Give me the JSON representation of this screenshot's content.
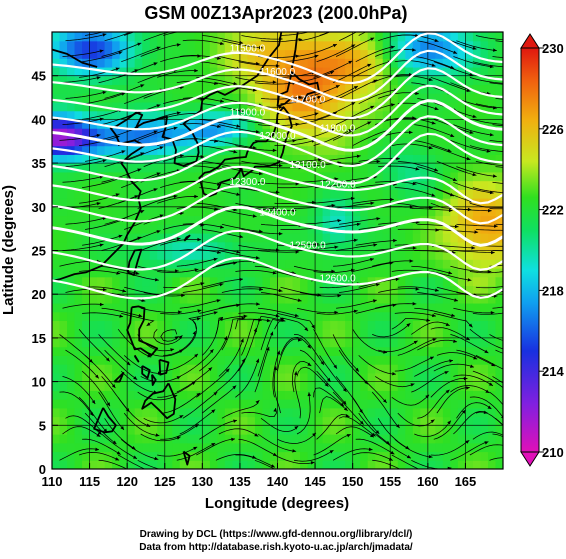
{
  "chart_data": {
    "type": "heatmap",
    "title": "GSM 00Z13Apr2023 (200.0hPa)",
    "xlabel": "Longitude (degrees)",
    "ylabel": "Latitude (degrees)",
    "xlim": [
      110,
      170
    ],
    "ylim": [
      0,
      50
    ],
    "x_ticks": [
      "110",
      "115",
      "120",
      "125",
      "130",
      "135",
      "140",
      "145",
      "150",
      "155",
      "160",
      "165"
    ],
    "y_ticks": [
      "0",
      "5",
      "10",
      "15",
      "20",
      "25",
      "30",
      "35",
      "40",
      "45"
    ],
    "colorbar": {
      "min": 210,
      "max": 230,
      "ticks": [
        "210",
        "214",
        "218",
        "222",
        "226",
        "230"
      ]
    },
    "contours": [
      {
        "label": "11500.0",
        "lat": 46.5
      },
      {
        "label": "11600.0",
        "lat": 44.5
      },
      {
        "label": "11700.0",
        "lat": 42.5
      },
      {
        "label": "11800.0",
        "lat": 40.5
      },
      {
        "label": "11900.0",
        "lat": 38.8
      },
      {
        "label": "12000.0",
        "lat": 37.0
      },
      {
        "label": "12100.0",
        "lat": 35.0
      },
      {
        "label": "12200.0",
        "lat": 32.8
      },
      {
        "label": "12300.0",
        "lat": 30.5
      },
      {
        "label": "12400.0",
        "lat": 28.0
      },
      {
        "label": "12500.0",
        "lat": 25.2
      },
      {
        "label": "12600.0",
        "lat": 22.0
      }
    ],
    "grid": true,
    "legend": "right colorbar"
  },
  "credits": {
    "line1": "Drawing by DCL (https://www.gfd-dennou.org/library/dcl/)",
    "line2": "Data from http://database.rish.kyoto-u.ac.jp/arch/jmadata/"
  }
}
